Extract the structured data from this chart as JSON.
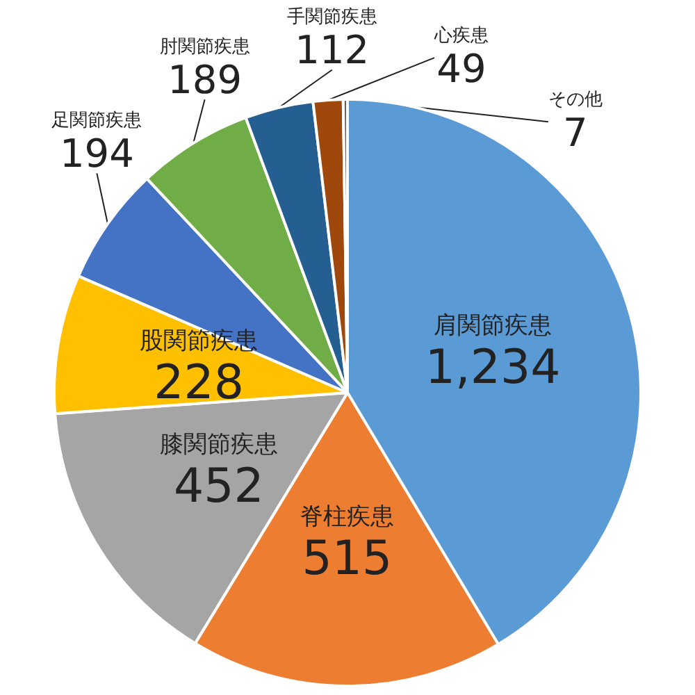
{
  "chart_data": {
    "type": "pie",
    "categories": [
      "肩関節疾患",
      "脊柱疾患",
      "膝関節疾患",
      "股関節疾患",
      "足関節疾患",
      "肘関節疾患",
      "手関節疾患",
      "心疾患",
      "その他"
    ],
    "values": [
      1234,
      515,
      452,
      228,
      194,
      189,
      112,
      49,
      7
    ],
    "value_labels": [
      "1,234",
      "515",
      "452",
      "228",
      "194",
      "189",
      "112",
      "49",
      "7"
    ],
    "colors": [
      "#5b9bd5",
      "#ed7d31",
      "#a5a5a5",
      "#ffc000",
      "#4472c4",
      "#70ad47",
      "#255e91",
      "#9e480e",
      "#636363"
    ],
    "legend": false
  }
}
